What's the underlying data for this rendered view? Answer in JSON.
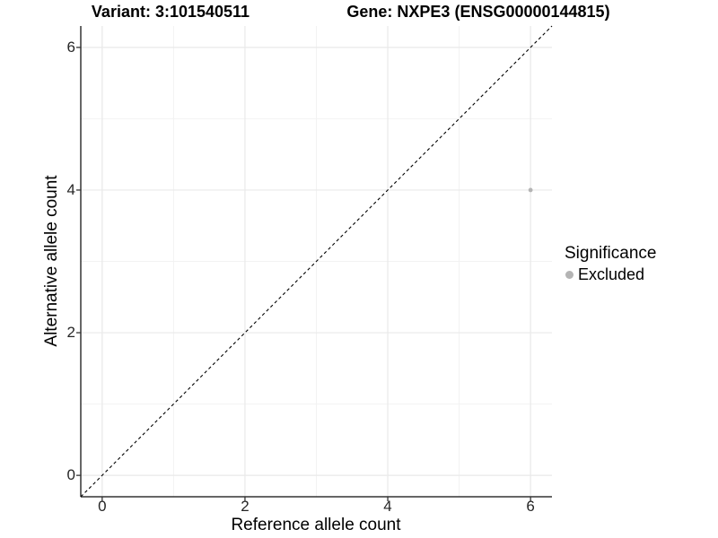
{
  "titles": {
    "variant": "Variant: 3:101540511",
    "gene": "Gene: NXPE3 (ENSG00000144815)"
  },
  "chart_data": {
    "type": "scatter",
    "title_left": "Variant: 3:101540511",
    "title_right": "Gene: NXPE3 (ENSG00000144815)",
    "xlabel": "Reference allele count",
    "ylabel": "Alternative allele count",
    "xlim": [
      -0.3,
      6.3
    ],
    "ylim": [
      -0.3,
      6.3
    ],
    "x_ticks": [
      0,
      2,
      4,
      6
    ],
    "y_ticks": [
      0,
      2,
      4,
      6
    ],
    "x_minor_ticks": [
      1,
      3,
      5
    ],
    "y_minor_ticks": [
      1,
      3,
      5
    ],
    "grid": true,
    "identity_line": {
      "from": "bottom-left",
      "to": "top-right",
      "style": "dashed",
      "color": "#000000"
    },
    "series": [
      {
        "name": "Excluded",
        "color": "#b4b4b4",
        "points": [
          {
            "x": 6,
            "y": 4
          }
        ]
      }
    ],
    "legend": {
      "title": "Significance",
      "position": "right",
      "entries": [
        {
          "label": "Excluded",
          "color": "#b4b4b4"
        }
      ]
    }
  },
  "colors": {
    "axis_line": "#333333",
    "tick_mark": "#333333",
    "grid_major": "#e9e9e9",
    "grid_minor": "#f2f2f2",
    "point": "#b4b4b4",
    "text": "#000000"
  }
}
